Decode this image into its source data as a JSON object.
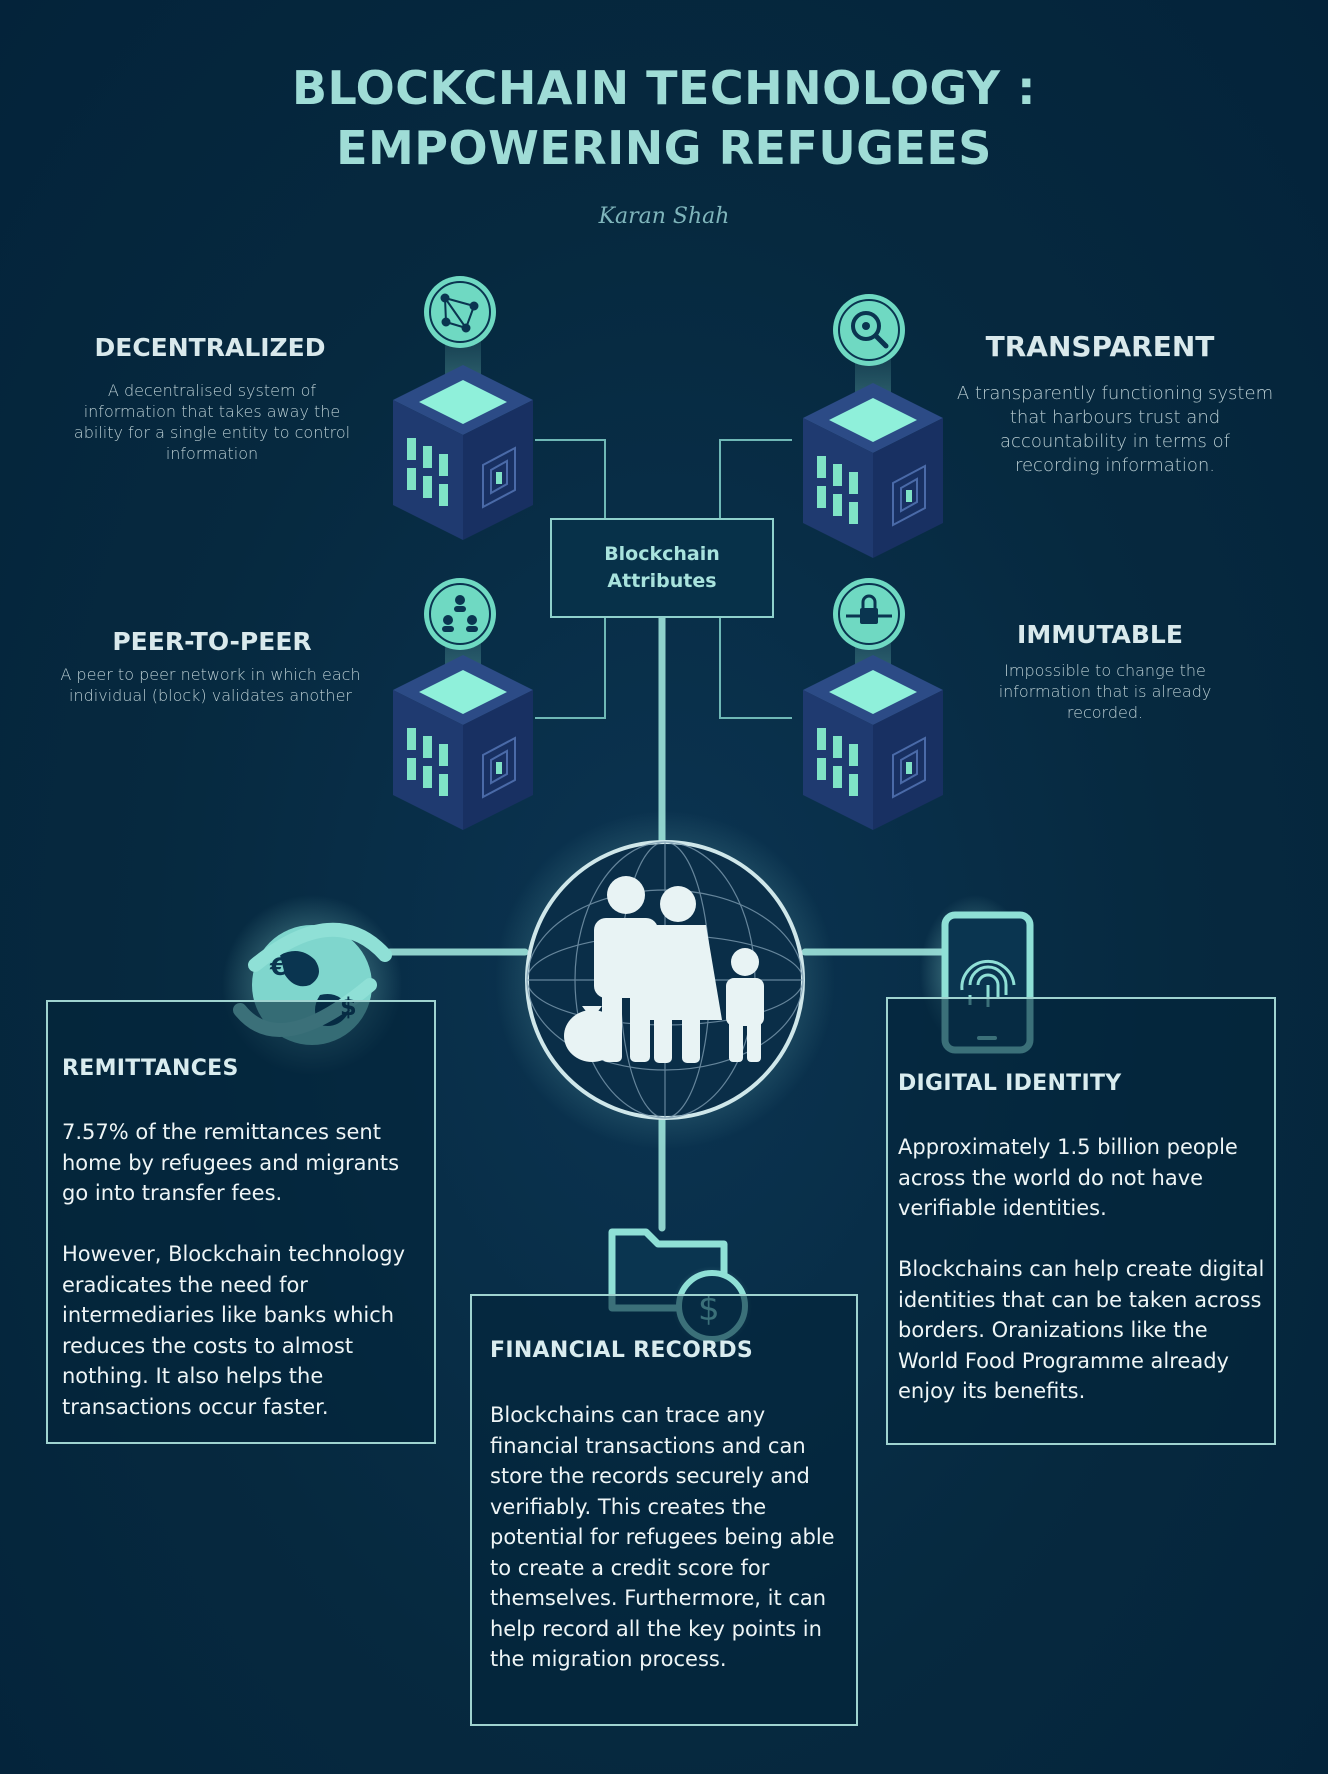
{
  "title_lines": [
    "BLOCKCHAIN TECHNOLOGY :",
    "EMPOWERING REFUGEES"
  ],
  "author": "Karan Shah",
  "attributes_box": "Blockchain Attributes",
  "attributes": {
    "decentralized": {
      "title": "DECENTRALIZED",
      "description": "A decentralised system of information that takes away the ability for a single entity to control information"
    },
    "transparent": {
      "title": "TRANSPARENT",
      "description": "A transparently functioning system that harbours trust and accountability in terms of recording information."
    },
    "peer_to_peer": {
      "title": "PEER-TO-PEER",
      "description": "A peer to peer network in which each individual (block) validates another"
    },
    "immutable": {
      "title": "IMMUTABLE",
      "description": "Impossible to change the information that is already recorded."
    }
  },
  "cards": {
    "remittances": {
      "title": "REMITTANCES",
      "text": "7.57% of the remittances sent home by refugees and migrants go into transfer fees.\n\nHowever, Blockchain technology eradicates the need for intermediaries like banks which reduces the costs to almost nothing. It also helps the transactions occur faster."
    },
    "financial_records": {
      "title": "FINANCIAL RECORDS",
      "text": "Blockchains can trace any financial transactions and can store the records securely and verifiably. This creates the potential for refugees being able to create a credit score for themselves.  Furthermore, it can help record all the key points in the migration process."
    },
    "digital_identity": {
      "title": "DIGITAL IDENTITY",
      "text": "Approximately 1.5 billion people across the world do not have verifiable identities.\n\nBlockchains can help create digital identities that can be taken across borders. Oranizations like the World Food Programme already enjoy its benefits."
    }
  },
  "colors": {
    "background": "#06293f",
    "accent": "#8fd1cc",
    "title": "#9fdcd6",
    "cube_top": "#7fe0cf"
  },
  "icons": [
    "network-icon",
    "search-eye-icon",
    "people-network-icon",
    "lock-chain-icon",
    "family-globe-icon",
    "globe-money-icon",
    "fingerprint-phone-icon",
    "folder-dollar-icon"
  ]
}
